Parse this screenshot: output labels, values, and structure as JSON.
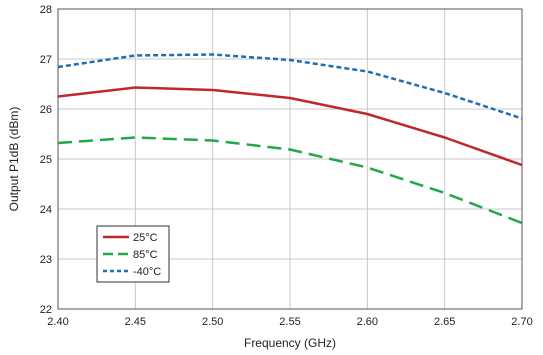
{
  "chart_data": {
    "type": "line",
    "title": "",
    "xlabel": "Frequency (GHz)",
    "ylabel": "Output P1dB (dBm)",
    "xlim": [
      2.4,
      2.7
    ],
    "ylim": [
      22,
      28
    ],
    "x_ticks": [
      "2.40",
      "2.45",
      "2.50",
      "2.55",
      "2.60",
      "2.65",
      "2.70"
    ],
    "y_ticks": [
      "22",
      "23",
      "24",
      "25",
      "26",
      "27",
      "28"
    ],
    "grid": true,
    "legend_position": "bottom-left",
    "x": [
      2.4,
      2.45,
      2.5,
      2.55,
      2.6,
      2.65,
      2.7
    ],
    "series": [
      {
        "name": "25°C",
        "values": [
          26.25,
          26.43,
          26.38,
          26.22,
          25.9,
          25.43,
          24.88
        ],
        "color": "#c0282d",
        "style": "solid"
      },
      {
        "name": "85°C",
        "values": [
          25.32,
          25.43,
          25.37,
          25.19,
          24.83,
          24.32,
          23.72
        ],
        "color": "#21a84a",
        "style": "dashed"
      },
      {
        "name": "-40°C",
        "values": [
          26.84,
          27.07,
          27.09,
          26.98,
          26.75,
          26.32,
          25.81
        ],
        "color": "#1f6db5",
        "style": "dotted"
      }
    ]
  }
}
